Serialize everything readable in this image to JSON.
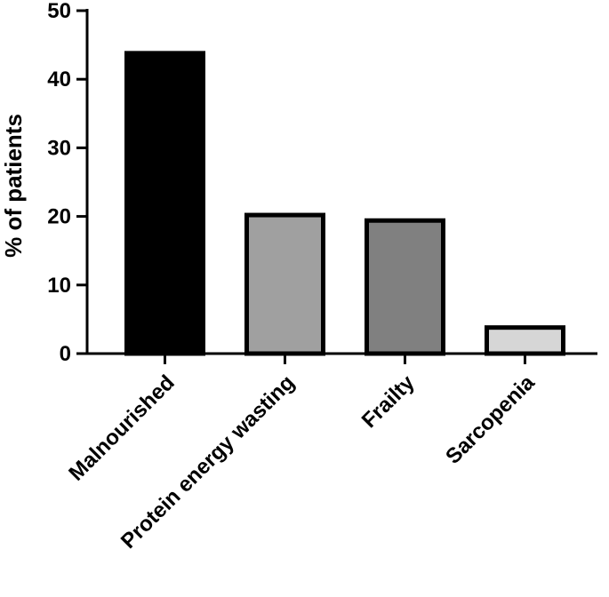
{
  "chart_data": {
    "type": "bar",
    "title": "",
    "xlabel": "",
    "ylabel": "% of patients",
    "ylim": [
      0,
      50
    ],
    "yticks": [
      0,
      10,
      20,
      30,
      40,
      50
    ],
    "grid": false,
    "legend": "none",
    "categories": [
      "Malnourished",
      "Protein energy wasting",
      "Frailty",
      "Sarcopenia"
    ],
    "values": [
      43.8,
      20.2,
      19.4,
      3.8
    ],
    "colors": [
      "#000000",
      "#a0a0a0",
      "#808080",
      "#d6d6d6"
    ]
  }
}
